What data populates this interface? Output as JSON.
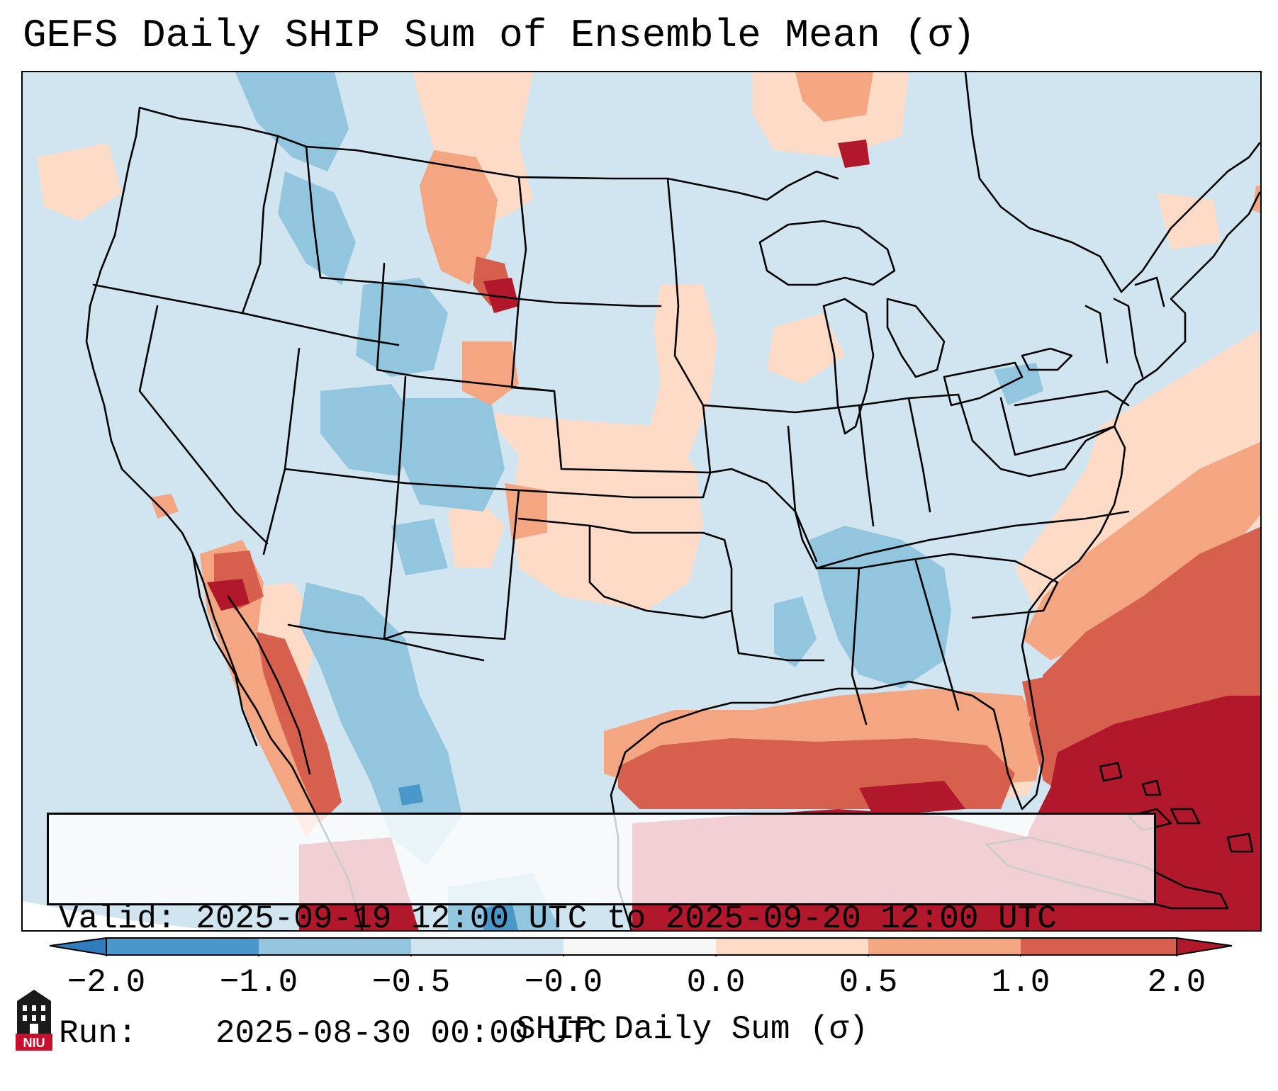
{
  "title": "GEFS Daily SHIP Sum of Ensemble Mean (σ)",
  "info": {
    "valid_label": "Valid:",
    "valid_value": "2025-09-19 12:00 UTC to 2025-09-20 12:00 UTC",
    "run_label": "Run:",
    "run_value": "2025-08-30 00:00 UTC"
  },
  "colorbar": {
    "label": "SHIP Daily Sum (σ)",
    "ticks": [
      "−2.0",
      "−1.0",
      "−0.5",
      "−0.0",
      "0.0",
      "0.5",
      "1.0",
      "2.0"
    ],
    "colors": {
      "below_min": "#2f7bbd",
      "bin_-2_-1": "#4a98c9",
      "bin_-1_-0.5": "#92c5de",
      "bin_-0.5_0": "#d1e5f0",
      "bin_0_0": "#f7f7f7",
      "bin_0_0.5": "#fddbc7",
      "bin_0.5_1": "#f4a582",
      "bin_1_2": "#d6604d",
      "above_max": "#b2182b"
    }
  },
  "logo": {
    "text": "NIU",
    "icon": "niu-building-icon"
  }
}
